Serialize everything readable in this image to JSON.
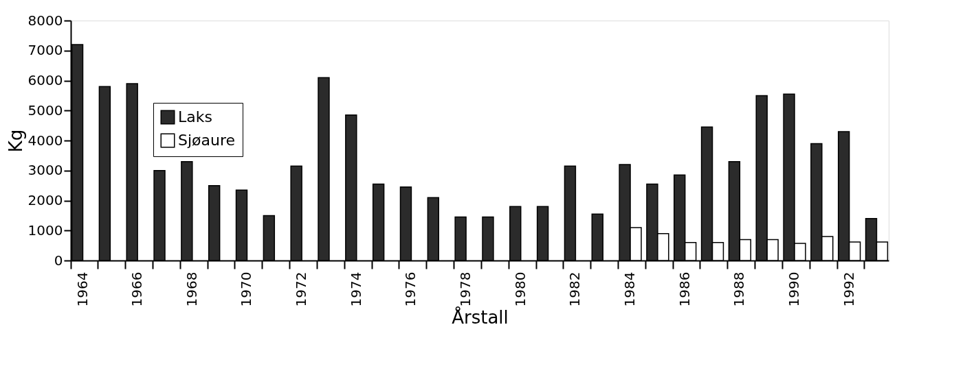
{
  "chart_data": {
    "type": "bar",
    "xlabel": "Årstall",
    "ylabel": "Kg",
    "categories": [
      "1964",
      null,
      "1966",
      null,
      "1968",
      null,
      "1970",
      null,
      "1972",
      null,
      "1974",
      null,
      "1976",
      null,
      "1978",
      null,
      "1980",
      null,
      "1982",
      null,
      "1984",
      null,
      "1986",
      null,
      "1988",
      null,
      "1990",
      null,
      "1992",
      null
    ],
    "series": [
      {
        "name": "Laks",
        "color": "#2b2b2b",
        "values": [
          7200,
          5800,
          5900,
          3000,
          3300,
          2500,
          2350,
          1500,
          3150,
          6100,
          4850,
          2550,
          2450,
          2100,
          1450,
          1450,
          1800,
          1800,
          3150,
          1550,
          3200,
          2550,
          2850,
          4450,
          3300,
          5500,
          5550,
          3900,
          4300,
          1400
        ]
      },
      {
        "name": "Sjøaure",
        "color": "#ffffff",
        "values": [
          null,
          null,
          null,
          null,
          null,
          null,
          null,
          null,
          null,
          null,
          null,
          null,
          null,
          null,
          null,
          null,
          null,
          null,
          null,
          null,
          1100,
          900,
          600,
          600,
          700,
          700,
          570,
          800,
          620,
          620
        ]
      }
    ],
    "ylim": [
      0,
      8000
    ],
    "yticks": [
      0,
      1000,
      2000,
      3000,
      4000,
      5000,
      6000,
      7000,
      8000
    ],
    "grid": false,
    "legend": "top left"
  }
}
